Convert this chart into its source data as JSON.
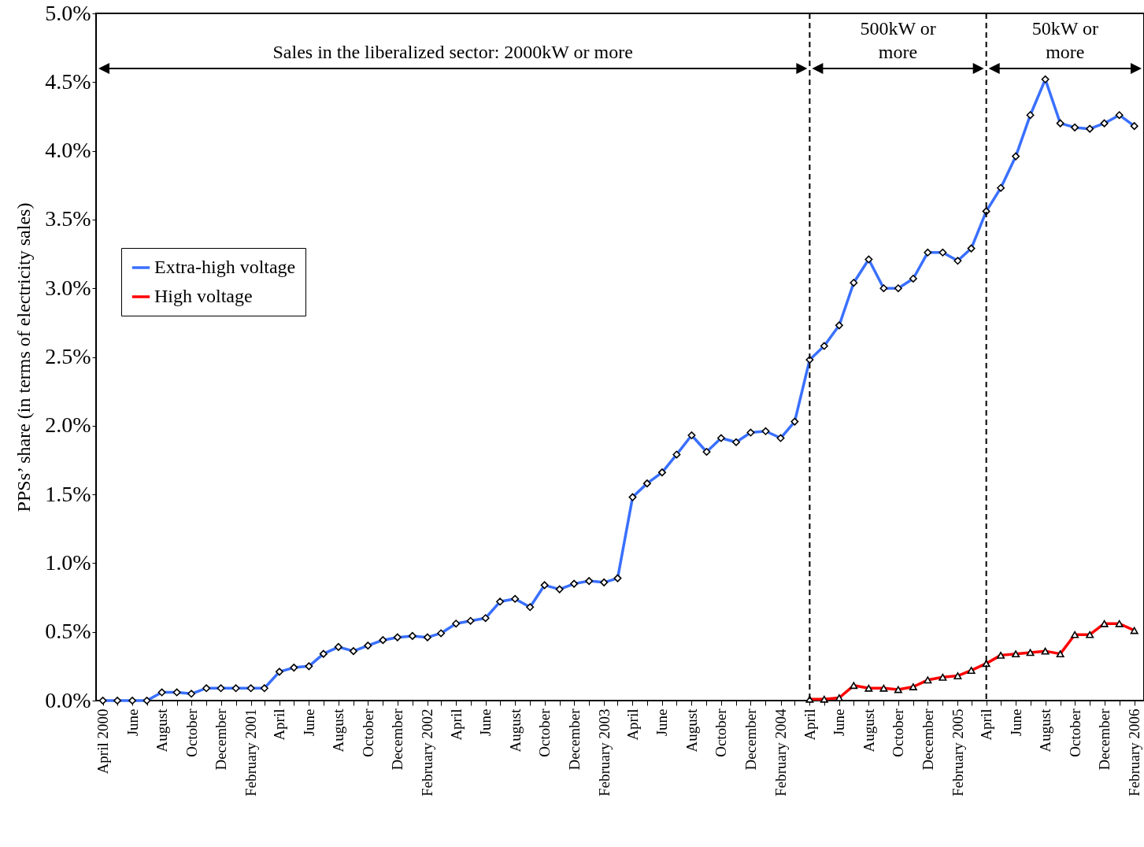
{
  "chart_data": {
    "type": "line",
    "ylabel": "PPSs’ share (in terms of electricity sales)",
    "x": [
      "2000-04",
      "2000-05",
      "2000-06",
      "2000-07",
      "2000-08",
      "2000-09",
      "2000-10",
      "2000-11",
      "2000-12",
      "2001-01",
      "2001-02",
      "2001-03",
      "2001-04",
      "2001-05",
      "2001-06",
      "2001-07",
      "2001-08",
      "2001-09",
      "2001-10",
      "2001-11",
      "2001-12",
      "2002-01",
      "2002-02",
      "2002-03",
      "2002-04",
      "2002-05",
      "2002-06",
      "2002-07",
      "2002-08",
      "2002-09",
      "2002-10",
      "2002-11",
      "2002-12",
      "2003-01",
      "2003-02",
      "2003-03",
      "2003-04",
      "2003-05",
      "2003-06",
      "2003-07",
      "2003-08",
      "2003-09",
      "2003-10",
      "2003-11",
      "2003-12",
      "2004-01",
      "2004-02",
      "2004-03",
      "2004-04",
      "2004-05",
      "2004-06",
      "2004-07",
      "2004-08",
      "2004-09",
      "2004-10",
      "2004-11",
      "2004-12",
      "2005-01",
      "2005-02",
      "2005-03",
      "2005-04",
      "2005-05",
      "2005-06",
      "2005-07",
      "2005-08",
      "2005-09",
      "2005-10",
      "2005-11",
      "2005-12",
      "2006-01",
      "2006-02"
    ],
    "series": [
      {
        "name": "Extra-high voltage",
        "color": "#3a70ff",
        "marker": "diamond",
        "values": [
          0,
          0,
          0,
          0,
          0.06,
          0.06,
          0.05,
          0.09,
          0.09,
          0.09,
          0.09,
          0.09,
          0.21,
          0.24,
          0.25,
          0.34,
          0.39,
          0.36,
          0.4,
          0.44,
          0.46,
          0.47,
          0.46,
          0.49,
          0.56,
          0.58,
          0.6,
          0.72,
          0.74,
          0.68,
          0.84,
          0.81,
          0.85,
          0.87,
          0.86,
          0.89,
          1.48,
          1.58,
          1.66,
          1.79,
          1.93,
          1.81,
          1.91,
          1.88,
          1.95,
          1.96,
          1.91,
          2.03,
          2.48,
          2.58,
          2.73,
          3.04,
          3.21,
          3.0,
          3.0,
          3.07,
          3.26,
          3.26,
          3.2,
          3.29,
          3.56,
          3.73,
          3.96,
          4.26,
          4.52,
          4.2,
          4.17,
          4.16,
          4.2,
          4.26,
          4.18
        ]
      },
      {
        "name": "High voltage",
        "color": "#ff0000",
        "marker": "triangle",
        "values": [
          null,
          null,
          null,
          null,
          null,
          null,
          null,
          null,
          null,
          null,
          null,
          null,
          null,
          null,
          null,
          null,
          null,
          null,
          null,
          null,
          null,
          null,
          null,
          null,
          null,
          null,
          null,
          null,
          null,
          null,
          null,
          null,
          null,
          null,
          null,
          null,
          null,
          null,
          null,
          null,
          null,
          null,
          null,
          null,
          null,
          null,
          null,
          null,
          0.01,
          0.01,
          0.02,
          0.11,
          0.09,
          0.09,
          0.08,
          0.1,
          0.15,
          0.17,
          0.18,
          0.22,
          0.27,
          0.33,
          0.34,
          0.35,
          0.36,
          0.34,
          0.48,
          0.48,
          0.56,
          0.56,
          0.51
        ]
      }
    ],
    "xlim": [
      "2000-03-18",
      "2006-02-21"
    ],
    "xticks": [
      {
        "value": "2000-04",
        "label": "April 2000"
      },
      {
        "value": "2000-05",
        "label": null
      },
      {
        "value": "2000-06",
        "label": "June"
      },
      {
        "value": "2000-07",
        "label": null
      },
      {
        "value": "2000-08",
        "label": "August"
      },
      {
        "value": "2000-09",
        "label": null
      },
      {
        "value": "2000-10",
        "label": "October"
      },
      {
        "value": "2000-11",
        "label": null
      },
      {
        "value": "2000-12",
        "label": "December"
      },
      {
        "value": "2001-01",
        "label": null
      },
      {
        "value": "2001-02",
        "label": "February 2001"
      },
      {
        "value": "2001-03",
        "label": null
      },
      {
        "value": "2001-04",
        "label": "April"
      },
      {
        "value": "2001-05",
        "label": null
      },
      {
        "value": "2001-06",
        "label": "June"
      },
      {
        "value": "2001-07",
        "label": null
      },
      {
        "value": "2001-08",
        "label": "August"
      },
      {
        "value": "2001-09",
        "label": null
      },
      {
        "value": "2001-10",
        "label": "October"
      },
      {
        "value": "2001-11",
        "label": null
      },
      {
        "value": "2001-12",
        "label": "December"
      },
      {
        "value": "2002-01",
        "label": null
      },
      {
        "value": "2002-02",
        "label": "February 2002"
      },
      {
        "value": "2002-03",
        "label": null
      },
      {
        "value": "2002-04",
        "label": "April"
      },
      {
        "value": "2002-05",
        "label": null
      },
      {
        "value": "2002-06",
        "label": "June"
      },
      {
        "value": "2002-07",
        "label": null
      },
      {
        "value": "2002-08",
        "label": "August"
      },
      {
        "value": "2002-09",
        "label": null
      },
      {
        "value": "2002-10",
        "label": "October"
      },
      {
        "value": "2002-11",
        "label": null
      },
      {
        "value": "2002-12",
        "label": "December"
      },
      {
        "value": "2003-01",
        "label": null
      },
      {
        "value": "2003-02",
        "label": "February 2003"
      },
      {
        "value": "2003-03",
        "label": null
      },
      {
        "value": "2003-04",
        "label": "April"
      },
      {
        "value": "2003-05",
        "label": null
      },
      {
        "value": "2003-06",
        "label": "June"
      },
      {
        "value": "2003-07",
        "label": null
      },
      {
        "value": "2003-08",
        "label": "August"
      },
      {
        "value": "2003-09",
        "label": null
      },
      {
        "value": "2003-10",
        "label": "October"
      },
      {
        "value": "2003-11",
        "label": null
      },
      {
        "value": "2003-12",
        "label": "December"
      },
      {
        "value": "2004-01",
        "label": null
      },
      {
        "value": "2004-02",
        "label": "February 2004"
      },
      {
        "value": "2004-03",
        "label": null
      },
      {
        "value": "2004-04",
        "label": "April"
      },
      {
        "value": "2004-05",
        "label": null
      },
      {
        "value": "2004-06",
        "label": "June"
      },
      {
        "value": "2004-07",
        "label": null
      },
      {
        "value": "2004-08",
        "label": "August"
      },
      {
        "value": "2004-09",
        "label": null
      },
      {
        "value": "2004-10",
        "label": "October"
      },
      {
        "value": "2004-11",
        "label": null
      },
      {
        "value": "2004-12",
        "label": "December"
      },
      {
        "value": "2005-01",
        "label": null
      },
      {
        "value": "2005-02",
        "label": "February 2005"
      },
      {
        "value": "2005-03",
        "label": null
      },
      {
        "value": "2005-04",
        "label": "April"
      },
      {
        "value": "2005-05",
        "label": null
      },
      {
        "value": "2005-06",
        "label": "June"
      },
      {
        "value": "2005-07",
        "label": null
      },
      {
        "value": "2005-08",
        "label": "August"
      },
      {
        "value": "2005-09",
        "label": null
      },
      {
        "value": "2005-10",
        "label": "October"
      },
      {
        "value": "2005-11",
        "label": null
      },
      {
        "value": "2005-12",
        "label": "December"
      },
      {
        "value": "2006-01",
        "label": null
      },
      {
        "value": "2006-02",
        "label": "February 2006"
      }
    ],
    "ylim": [
      0,
      5
    ],
    "yticks": [
      {
        "value": 0,
        "label": "0.0%"
      },
      {
        "value": 0.5,
        "label": "0.5%"
      },
      {
        "value": 1,
        "label": "1.0%"
      },
      {
        "value": 1.5,
        "label": "1.5%"
      },
      {
        "value": 2,
        "label": "2.0%"
      },
      {
        "value": 2.5,
        "label": "2.5%"
      },
      {
        "value": 3,
        "label": "3.0%"
      },
      {
        "value": 3.5,
        "label": "3.5%"
      },
      {
        "value": 4,
        "label": "4.0%"
      },
      {
        "value": 4.5,
        "label": "4.5%"
      },
      {
        "value": 5,
        "label": "5.0%"
      }
    ],
    "ref_lines": [
      {
        "axis": "x",
        "value": "2004-04",
        "color": "#000000",
        "line_style": "dashed"
      },
      {
        "axis": "x",
        "value": "2005-04",
        "color": "#000000",
        "line_style": "dashed"
      }
    ],
    "annotations": [
      "Sales in the liberalized sector: 2000kW or more",
      "500kW or more",
      "50kW or more"
    ],
    "legend": "top left",
    "line_style": "solid"
  }
}
